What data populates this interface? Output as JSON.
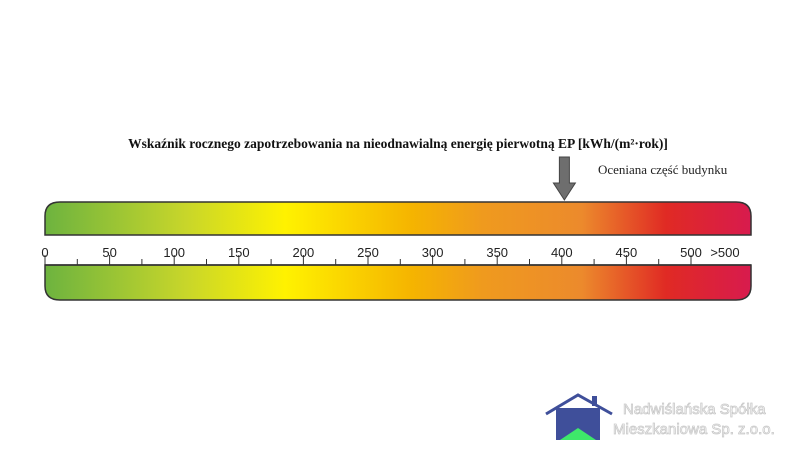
{
  "chart_data": {
    "type": "gauge",
    "title": "Wskaźnik rocznego zapotrzebowania na nieodnawialną energię pierwotną EP [kWh/(m²·rok)]",
    "xlim": [
      0,
      500
    ],
    "major_ticks": [
      0,
      50,
      100,
      150,
      200,
      250,
      300,
      350,
      400,
      450,
      500
    ],
    "tick_labels": [
      "0",
      "50",
      "100",
      "150",
      "200",
      "250",
      "300",
      "350",
      "400",
      "450",
      "500",
      ">500"
    ],
    "minor_tick_step": 25,
    "indicator": {
      "value": 402,
      "label": "Oceniana część budynku"
    },
    "gradient_colors": [
      "#6db33f",
      "#c8d62a",
      "#fff200",
      "#f5b400",
      "#ef9a1e",
      "#ec8a2c",
      "#e02a24",
      "#d81b4e"
    ]
  },
  "logo": {
    "line1": "Nadwiślańska Spółka",
    "line2": "Mieszkaniowa Sp. z.o.o.",
    "house_color": "#3f4f9a",
    "roof_inner_color": "#3ee86a"
  }
}
